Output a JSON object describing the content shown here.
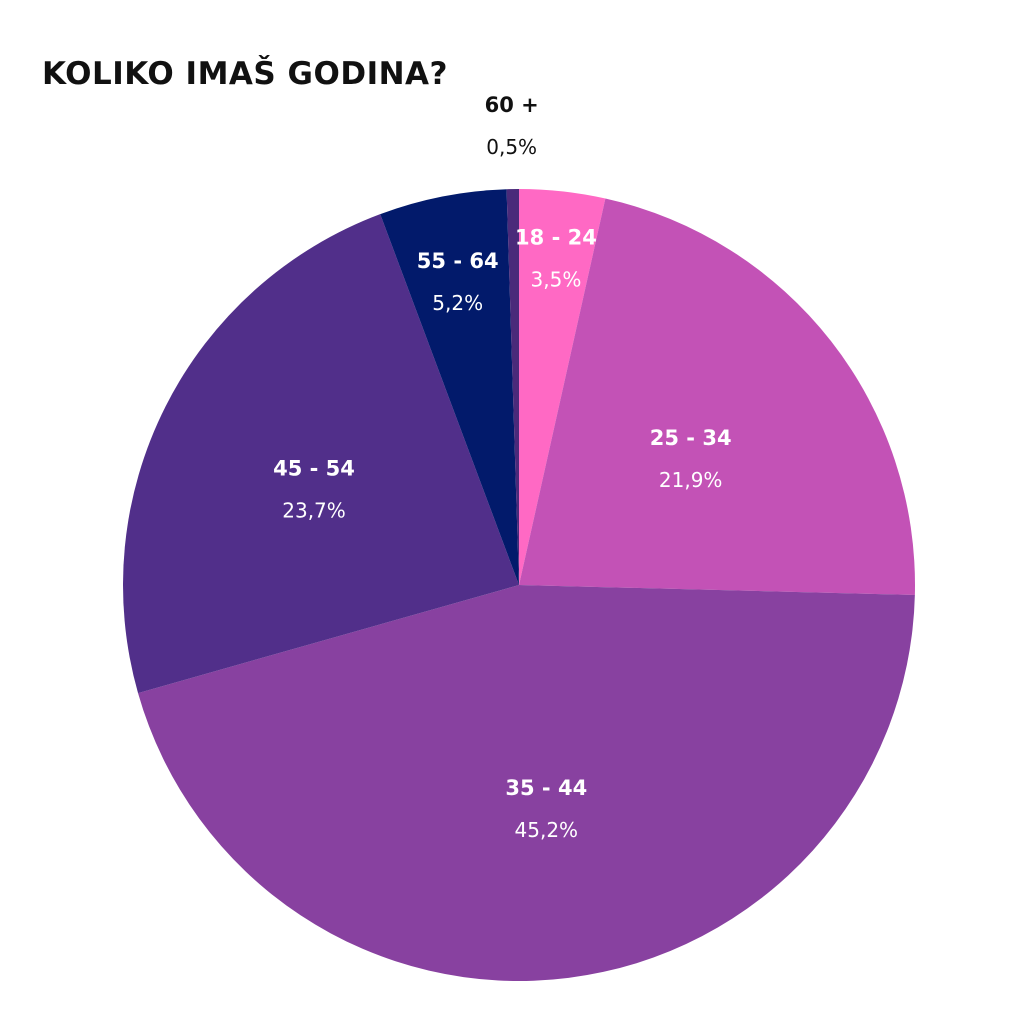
{
  "chart_data": {
    "type": "pie",
    "title": "KOLIKO IMAŠ GODINA?",
    "start_angle_deg": 0,
    "direction": "clockwise",
    "slices": [
      {
        "label": "18 - 24",
        "value": 3.5,
        "value_text": "3,5%",
        "color": "#ff69c4",
        "text_color": "#ffffff"
      },
      {
        "label": "25 - 34",
        "value": 21.9,
        "value_text": "21,9%",
        "color": "#c352b6",
        "text_color": "#ffffff"
      },
      {
        "label": "35 - 44",
        "value": 45.2,
        "value_text": "45,2%",
        "color": "#8841a0",
        "text_color": "#ffffff"
      },
      {
        "label": "45 - 54",
        "value": 23.7,
        "value_text": "23,7%",
        "color": "#512f8a",
        "text_color": "#ffffff"
      },
      {
        "label": "55 - 64",
        "value": 5.2,
        "value_text": "5,2%",
        "color": "#021a6b",
        "text_color": "#ffffff"
      },
      {
        "label": "60 +",
        "value": 0.5,
        "value_text": "0,5%",
        "color": "#4a2a7a",
        "text_color": "#111111",
        "label_outside": true
      }
    ]
  }
}
